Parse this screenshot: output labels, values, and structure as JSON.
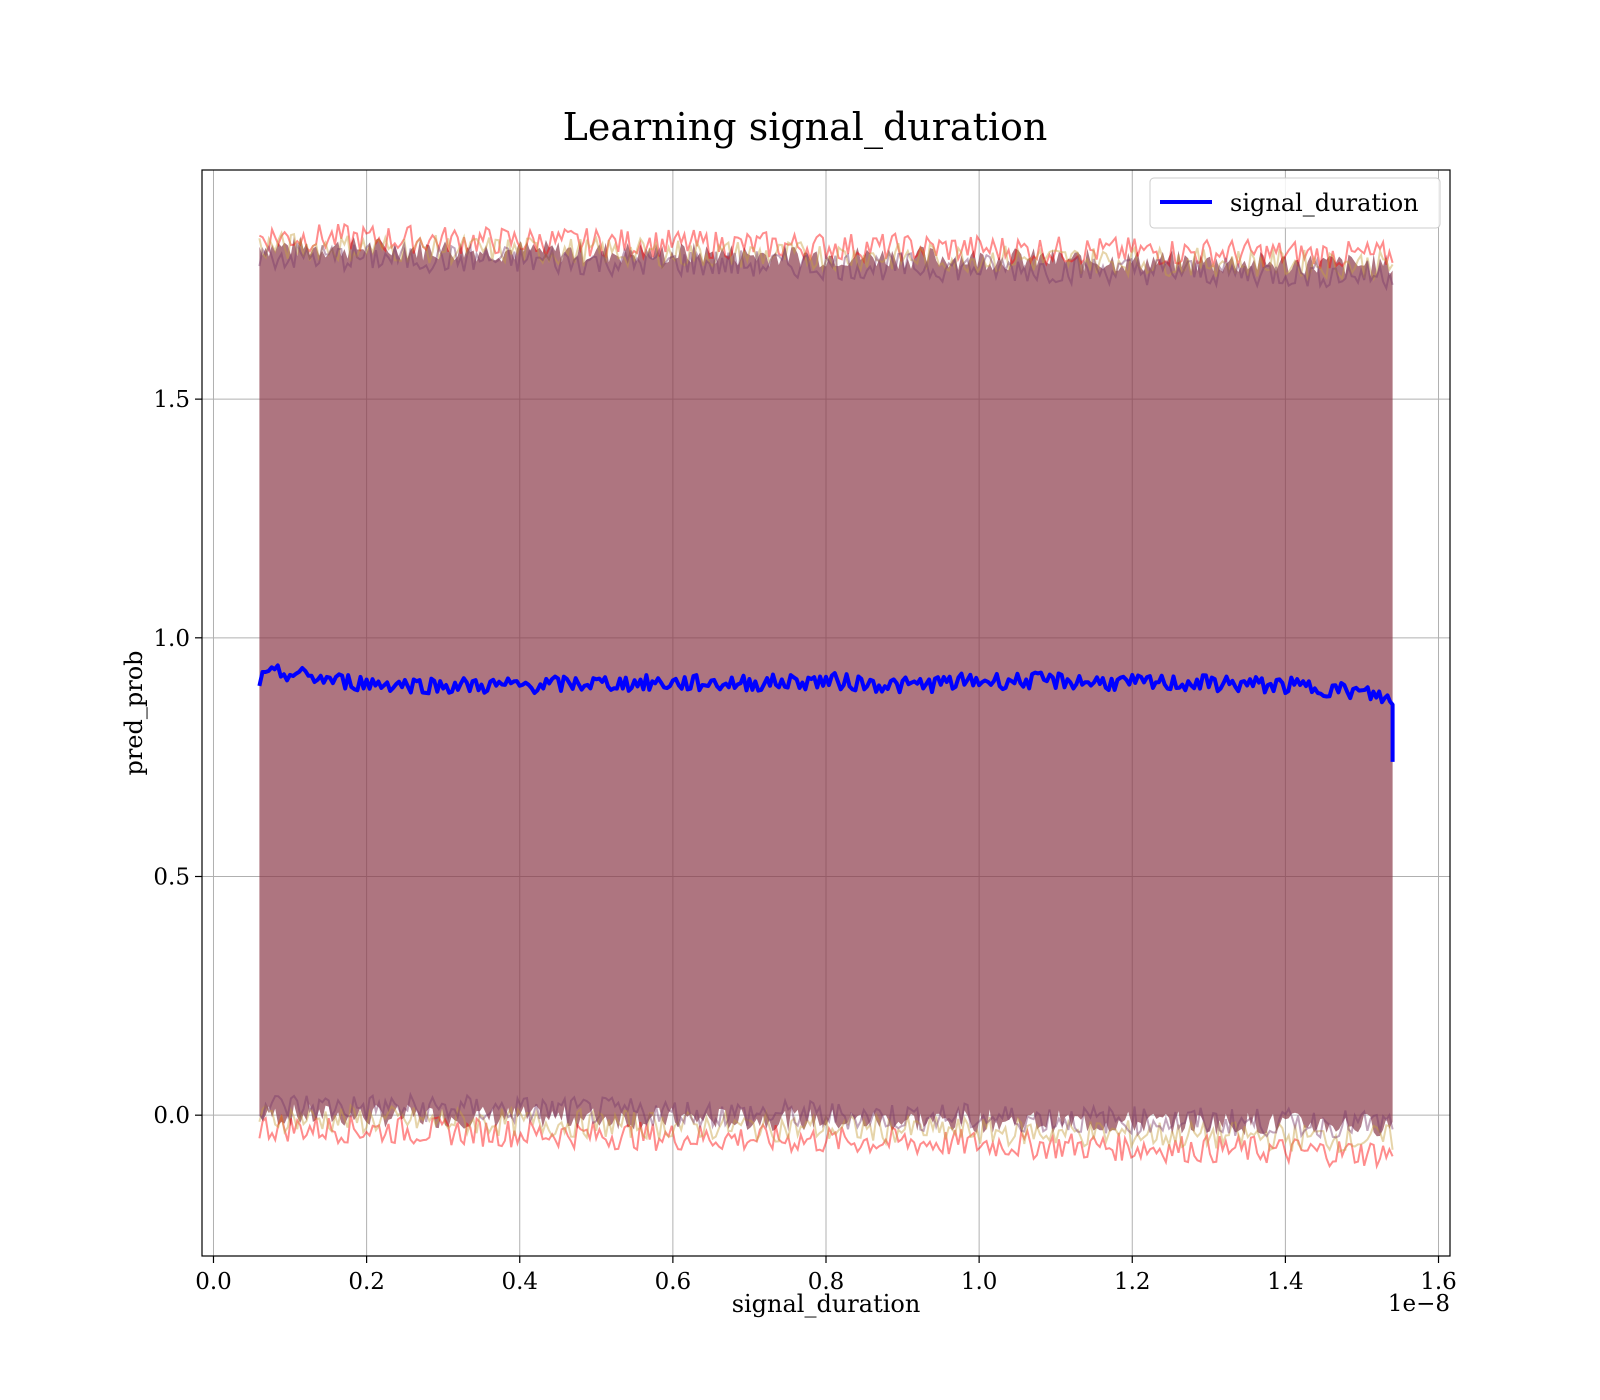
{
  "chart_data": {
    "type": "line",
    "title": "Learning signal_duration",
    "xlabel": "signal_duration",
    "ylabel": "pred_prob",
    "x_offset_label": "1e−8",
    "xlim": [
      -0.015,
      1.615
    ],
    "ylim": [
      -0.295,
      1.98
    ],
    "x_ticks": [
      0.0,
      0.2,
      0.4,
      0.6,
      0.8,
      1.0,
      1.2,
      1.4,
      1.6
    ],
    "x_tick_labels": [
      "0.0",
      "0.2",
      "0.4",
      "0.6",
      "0.8",
      "1.0",
      "1.2",
      "1.4",
      "1.6"
    ],
    "y_ticks": [
      0.0,
      0.5,
      1.0,
      1.5
    ],
    "y_tick_labels": [
      "0.0",
      "0.5",
      "1.0",
      "1.5"
    ],
    "grid": true,
    "legend_position": "top-right",
    "series": [
      {
        "name": "signal_duration",
        "color": "#0000ff",
        "x": [
          0.06,
          0.08,
          0.1,
          0.12,
          0.14,
          0.16,
          0.2,
          0.3,
          0.4,
          0.5,
          0.6,
          0.7,
          0.8,
          0.9,
          1.0,
          1.1,
          1.2,
          1.3,
          1.4,
          1.45,
          1.5,
          1.53,
          1.54,
          1.54
        ],
        "values": [
          0.91,
          0.925,
          0.925,
          0.92,
          0.915,
          0.91,
          0.905,
          0.9,
          0.9,
          0.905,
          0.905,
          0.905,
          0.91,
          0.9,
          0.91,
          0.91,
          0.905,
          0.905,
          0.9,
          0.895,
          0.885,
          0.875,
          0.86,
          0.74
        ]
      }
    ],
    "bands": [
      {
        "color": "#8b3a4a",
        "opacity": 0.7,
        "x": [
          0.06,
          1.54
        ],
        "lower": [
          0.0,
          -0.02
        ],
        "upper": [
          1.82,
          1.78
        ]
      }
    ],
    "band_edges": [
      {
        "color": "#ff0000",
        "x": [
          0.06,
          1.54
        ],
        "upper": [
          1.84,
          1.8
        ],
        "lower": [
          -0.025,
          -0.08
        ]
      },
      {
        "color": "#c8a040",
        "x": [
          0.06,
          1.54
        ],
        "upper": [
          1.82,
          1.78
        ],
        "lower": [
          -0.005,
          -0.05
        ]
      },
      {
        "color": "#7a3a6a",
        "x": [
          0.06,
          1.54
        ],
        "upper": [
          1.8,
          1.76
        ],
        "lower": [
          0.02,
          -0.02
        ]
      }
    ]
  }
}
